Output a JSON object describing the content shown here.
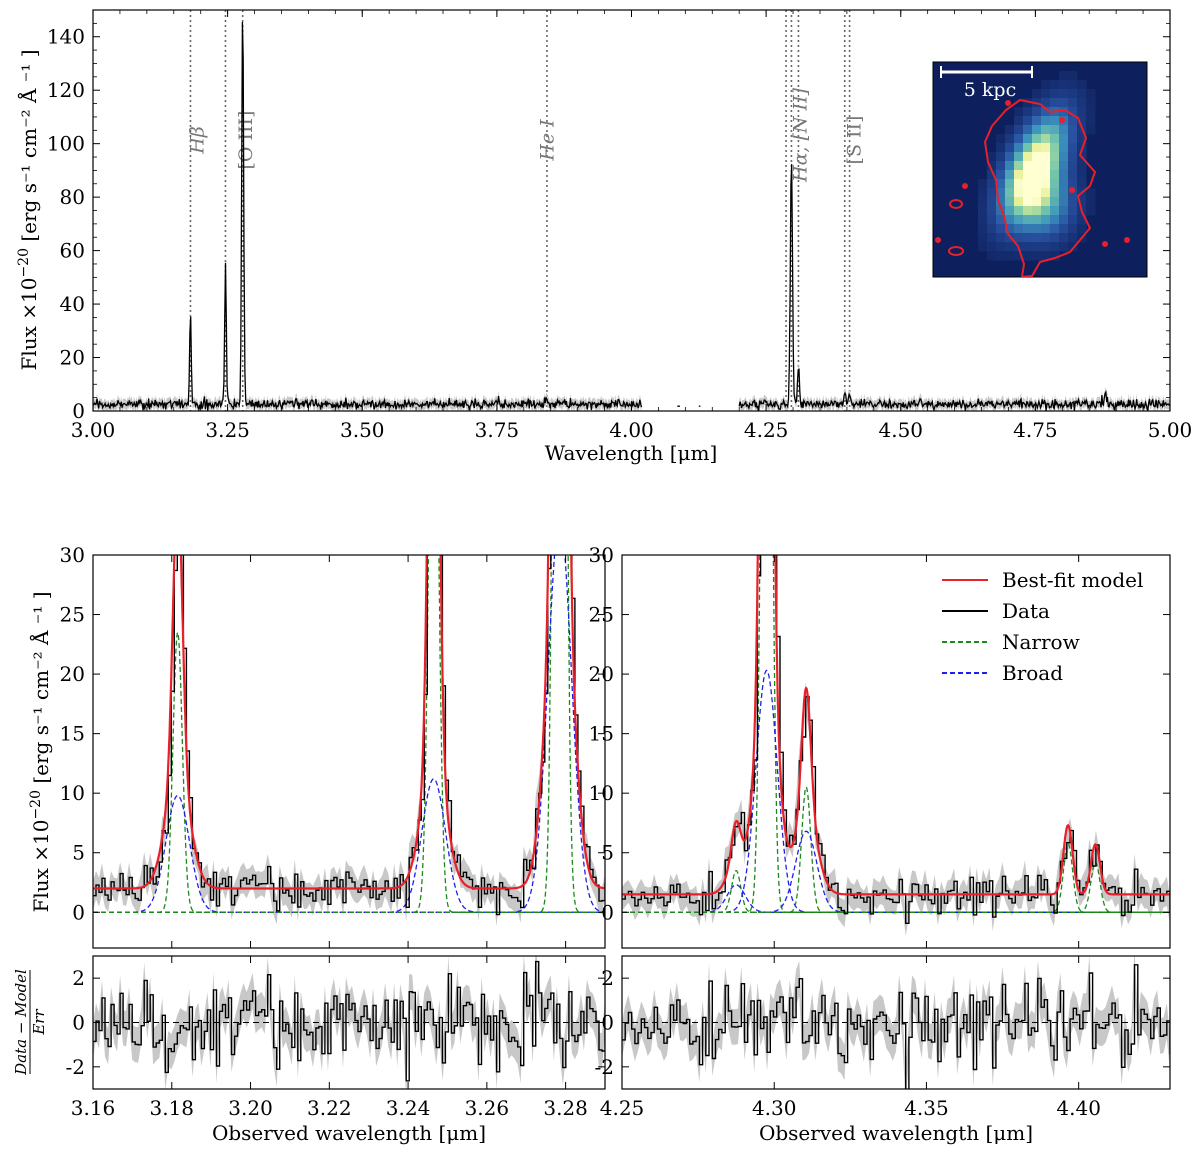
{
  "chart_data": [
    {
      "panel": "full-spectrum",
      "type": "line",
      "xlabel": "Wavelength [μm]",
      "ylabel_prefix": "Flux ×10",
      "ylabel_exp": "−20",
      "ylabel_units": "[erg s⁻¹ cm⁻² Å ⁻¹ ]",
      "xlim": [
        3.0,
        5.0
      ],
      "ylim": [
        0,
        150
      ],
      "xticks": [
        3.0,
        3.25,
        3.5,
        3.75,
        4.0,
        4.25,
        4.5,
        4.75,
        5.0
      ],
      "xtick_labels": [
        "3.00",
        "3.25",
        "3.50",
        "3.75",
        "4.00",
        "4.25",
        "4.50",
        "4.75",
        "5.00"
      ],
      "yticks": [
        0,
        20,
        40,
        60,
        80,
        100,
        120,
        140
      ],
      "gap": [
        4.02,
        4.2
      ],
      "continuum": 2.5,
      "line_markers": [
        {
          "label": "Hβ",
          "x": [
            3.181
          ],
          "label_x": 3.205
        },
        {
          "label": "[O III]",
          "x": [
            3.246,
            3.278
          ],
          "label_x": 3.295
        },
        {
          "label": "He I",
          "x": [
            3.843
          ],
          "label_x": 3.855
        },
        {
          "label": "Hα, [N II]",
          "x": [
            4.287,
            4.297,
            4.31
          ],
          "label_x": 4.325
        },
        {
          "label": "[S II]",
          "x": [
            4.396,
            4.405
          ],
          "label_x": 4.425
        }
      ],
      "peaks": [
        {
          "x": 3.181,
          "height": 34,
          "width": 0.0015
        },
        {
          "x": 3.246,
          "height": 53,
          "width": 0.0015
        },
        {
          "x": 3.278,
          "height": 150,
          "width": 0.0018
        },
        {
          "x": 3.843,
          "height": 3,
          "width": 0.0015
        },
        {
          "x": 4.297,
          "height": 93,
          "width": 0.002
        },
        {
          "x": 4.31,
          "height": 13,
          "width": 0.0018
        },
        {
          "x": 4.396,
          "height": 5,
          "width": 0.0015
        },
        {
          "x": 4.405,
          "height": 4,
          "width": 0.0015
        },
        {
          "x": 4.88,
          "height": 3,
          "width": 0.002
        }
      ],
      "inset": {
        "scale_label": "5 kpc",
        "colormap": "navy-to-yellow",
        "contour_color": "#e8202a"
      }
    },
    {
      "panel": "zoom-hbeta-oiii",
      "type": "line",
      "xlabel": "Observed wavelength [μm]",
      "ylabel_prefix": "Flux ×10",
      "ylabel_exp": "−20",
      "ylabel_units": "[erg s⁻¹ cm⁻² Å ⁻¹ ]",
      "residual_ylabel": "Data−Model / Err",
      "xlim": [
        3.16,
        3.29
      ],
      "ylim": [
        -3,
        30
      ],
      "xticks": [
        3.16,
        3.18,
        3.2,
        3.22,
        3.24,
        3.26,
        3.28
      ],
      "xtick_labels": [
        "3.16",
        "3.18",
        "3.20",
        "3.22",
        "3.24",
        "3.26",
        "3.28"
      ],
      "yticks": [
        0,
        5,
        10,
        15,
        20,
        25,
        30
      ],
      "residual_ylim": [
        -3,
        3
      ],
      "residual_yticks": [
        -2,
        0,
        2
      ],
      "continuum": 2.0,
      "components": [
        {
          "x0": 3.1815,
          "narrow": 23.5,
          "narrow_sigma": 0.0012,
          "broad": 9.8,
          "broad_sigma": 0.003
        },
        {
          "x0": 3.2465,
          "narrow": 55,
          "narrow_sigma": 0.0012,
          "broad": 11.2,
          "broad_sigma": 0.003
        },
        {
          "x0": 3.2785,
          "narrow": 150,
          "narrow_sigma": 0.0012,
          "broad": 33,
          "broad_sigma": 0.003
        }
      ]
    },
    {
      "panel": "zoom-halpha-nii-sii",
      "type": "line",
      "xlabel": "Observed wavelength [μm]",
      "xlim": [
        4.25,
        4.43
      ],
      "ylim": [
        -3,
        30
      ],
      "xticks": [
        4.25,
        4.3,
        4.35,
        4.4
      ],
      "xtick_labels": [
        "4.25",
        "4.30",
        "4.35",
        "4.40"
      ],
      "yticks": [
        0,
        5,
        10,
        15,
        20,
        25,
        30
      ],
      "residual_ylim": [
        -3,
        3
      ],
      "residual_yticks": [
        -2,
        0,
        2
      ],
      "continuum": 1.5,
      "components": [
        {
          "x0": 4.2875,
          "narrow": 3.5,
          "narrow_sigma": 0.0015,
          "broad": 2.3,
          "broad_sigma": 0.003
        },
        {
          "x0": 4.2975,
          "narrow": 90,
          "narrow_sigma": 0.0015,
          "broad": 20.3,
          "broad_sigma": 0.0035
        },
        {
          "x0": 4.3105,
          "narrow": 10.5,
          "narrow_sigma": 0.0015,
          "broad": 6.8,
          "broad_sigma": 0.0035
        },
        {
          "x0": 4.3965,
          "narrow": 5.8,
          "narrow_sigma": 0.0015,
          "broad": 0,
          "broad_sigma": 0.003
        },
        {
          "x0": 4.4055,
          "narrow": 4.2,
          "narrow_sigma": 0.0015,
          "broad": 0,
          "broad_sigma": 0.003
        }
      ],
      "legend": {
        "placement": "top-right",
        "entries": [
          {
            "label": "Best-fit model",
            "color": "#e8202a",
            "style": "solid"
          },
          {
            "label": "Data",
            "color": "#000000",
            "style": "solid"
          },
          {
            "label": "Narrow",
            "color": "#1a8a1a",
            "style": "dashed"
          },
          {
            "label": "Broad",
            "color": "#1f1fe8",
            "style": "dashed"
          }
        ]
      }
    }
  ],
  "colors": {
    "model": "#e8202a",
    "data": "#000000",
    "narrow": "#1a8a1a",
    "broad": "#1f1fe8",
    "error_band": "#c8c8c8",
    "marker": "#666666"
  }
}
